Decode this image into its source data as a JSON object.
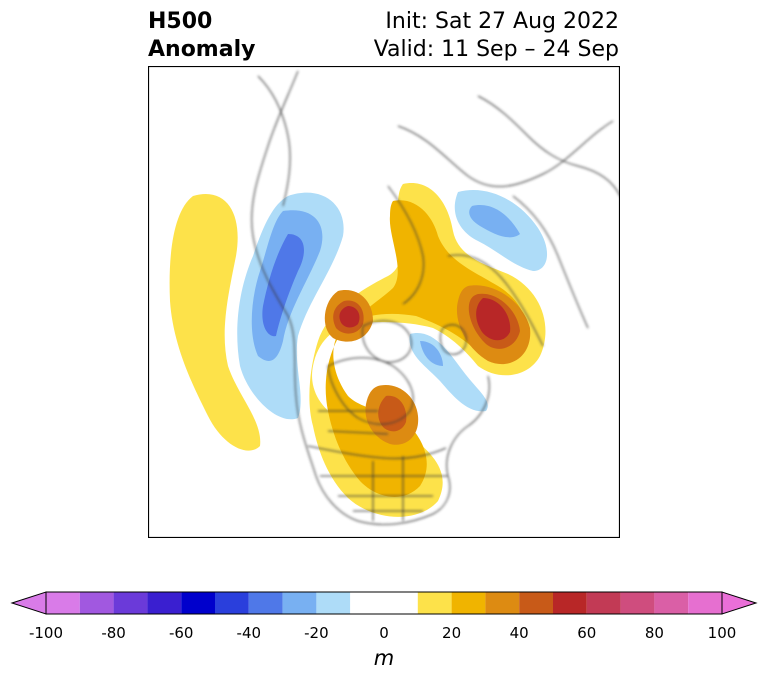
{
  "header": {
    "left_line1": "H500",
    "left_line2": "Anomaly",
    "right_line1": "Init: Sat 27 Aug 2022",
    "right_line2": "Valid: 11 Sep – 24 Sep"
  },
  "colorbar": {
    "unit": "m",
    "ticks": [
      "-100",
      "-80",
      "-60",
      "-40",
      "-20",
      "0",
      "20",
      "40",
      "60",
      "80",
      "100"
    ],
    "range": [
      -100,
      100
    ],
    "extend": "both",
    "colors": {
      "neg_extend": "#d97be8",
      "neg": [
        "#d97be8",
        "#a158e0",
        "#6b3ad9",
        "#3a1fd0",
        "#0000cc",
        "#2a3fdc",
        "#4f78e8",
        "#78b0f2",
        "#aedcf8"
      ],
      "zero": "#ffffff",
      "pos": [
        "#fde24a",
        "#f0b400",
        "#dd8b12",
        "#c85a18",
        "#b82727",
        "#c23a55",
        "#cf4d7e",
        "#da5fa6",
        "#e66fd0"
      ],
      "pos_extend": "#ea6fd8"
    }
  },
  "map": {
    "projection": "north-polar-stereographic",
    "region": "Northern Hemisphere (North America / Arctic / Eurasia)"
  }
}
